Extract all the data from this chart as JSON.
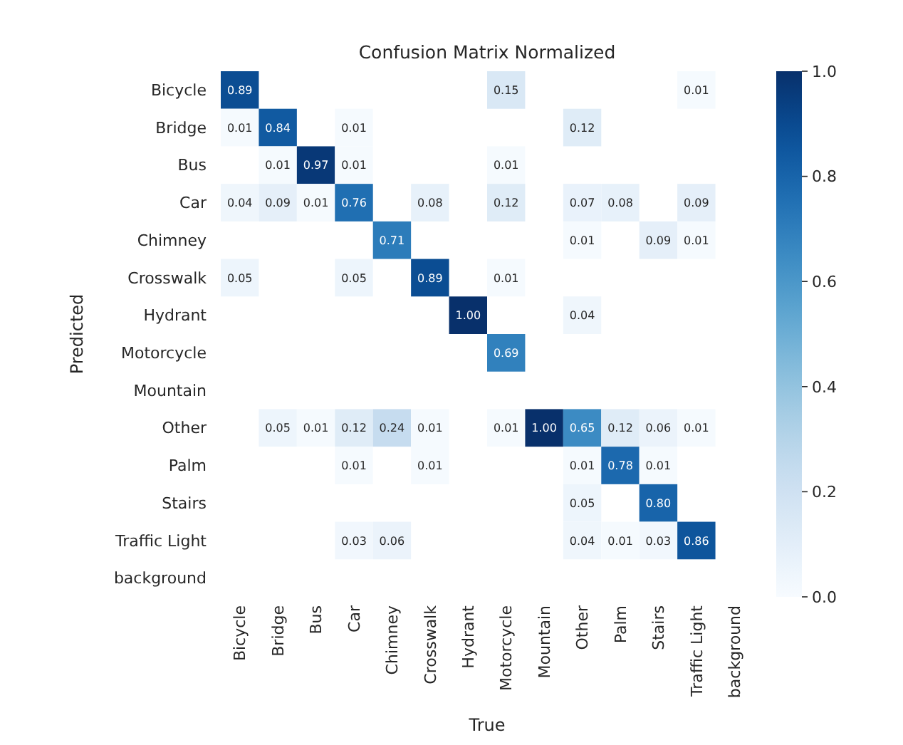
{
  "chart_data": {
    "type": "heatmap",
    "title": "Confusion Matrix Normalized",
    "xlabel": "True",
    "ylabel": "Predicted",
    "categories": [
      "Bicycle",
      "Bridge",
      "Bus",
      "Car",
      "Chimney",
      "Crosswalk",
      "Hydrant",
      "Motorcycle",
      "Mountain",
      "Other",
      "Palm",
      "Stairs",
      "Traffic Light",
      "background"
    ],
    "y_categories": [
      "Bicycle",
      "Bridge",
      "Bus",
      "Car",
      "Chimney",
      "Crosswalk",
      "Hydrant",
      "Motorcycle",
      "Mountain",
      "Other",
      "Palm",
      "Stairs",
      "Traffic Light",
      "background"
    ],
    "cells": [
      [
        0.89,
        null,
        null,
        null,
        null,
        null,
        null,
        0.15,
        null,
        null,
        null,
        null,
        0.01,
        null
      ],
      [
        0.01,
        0.84,
        null,
        0.01,
        null,
        null,
        null,
        null,
        null,
        0.12,
        null,
        null,
        null,
        null
      ],
      [
        null,
        0.01,
        0.97,
        0.01,
        null,
        null,
        null,
        0.01,
        null,
        null,
        null,
        null,
        null,
        null
      ],
      [
        0.04,
        0.09,
        0.01,
        0.76,
        null,
        0.08,
        null,
        0.12,
        null,
        0.07,
        0.08,
        null,
        0.09,
        null
      ],
      [
        null,
        null,
        null,
        null,
        0.71,
        null,
        null,
        null,
        null,
        0.01,
        null,
        0.09,
        0.01,
        null
      ],
      [
        0.05,
        null,
        null,
        0.05,
        null,
        0.89,
        null,
        0.01,
        null,
        null,
        null,
        null,
        null,
        null
      ],
      [
        null,
        null,
        null,
        null,
        null,
        null,
        1.0,
        null,
        null,
        0.04,
        null,
        null,
        null,
        null
      ],
      [
        null,
        null,
        null,
        null,
        null,
        null,
        null,
        0.69,
        null,
        null,
        null,
        null,
        null,
        null
      ],
      [
        null,
        null,
        null,
        null,
        null,
        null,
        null,
        null,
        null,
        null,
        null,
        null,
        null,
        null
      ],
      [
        null,
        0.05,
        0.01,
        0.12,
        0.24,
        0.01,
        null,
        0.01,
        1.0,
        0.65,
        0.12,
        0.06,
        0.01,
        null
      ],
      [
        null,
        null,
        null,
        0.01,
        null,
        0.01,
        null,
        null,
        null,
        0.01,
        0.78,
        0.01,
        null,
        null
      ],
      [
        null,
        null,
        null,
        null,
        null,
        null,
        null,
        null,
        null,
        0.05,
        null,
        0.8,
        null,
        null
      ],
      [
        null,
        null,
        null,
        0.03,
        0.06,
        null,
        null,
        null,
        null,
        0.04,
        0.01,
        0.03,
        0.86,
        null
      ],
      [
        null,
        null,
        null,
        null,
        null,
        null,
        null,
        null,
        null,
        null,
        null,
        null,
        null,
        null
      ]
    ],
    "cell_labels": [
      [
        "0.89",
        null,
        null,
        null,
        null,
        null,
        null,
        "0.15",
        null,
        null,
        null,
        null,
        "0.01",
        null
      ],
      [
        "0.01",
        "0.84",
        null,
        "0.01",
        null,
        null,
        null,
        null,
        null,
        "0.12",
        null,
        null,
        null,
        null
      ],
      [
        null,
        "0.01",
        "0.97",
        "0.01",
        null,
        null,
        null,
        "0.01",
        null,
        null,
        null,
        null,
        null,
        null
      ],
      [
        "0.04",
        "0.09",
        "0.01",
        "0.76",
        null,
        "0.08",
        null,
        "0.12",
        null,
        "0.07",
        "0.08",
        null,
        "0.09",
        null
      ],
      [
        null,
        null,
        null,
        null,
        "0.71",
        null,
        null,
        null,
        null,
        "0.01",
        null,
        "0.09",
        "0.01",
        null
      ],
      [
        "0.05",
        null,
        null,
        "0.05",
        null,
        "0.89",
        null,
        "0.01",
        null,
        null,
        null,
        null,
        null,
        null
      ],
      [
        null,
        null,
        null,
        null,
        null,
        null,
        "1.00",
        null,
        null,
        "0.04",
        null,
        null,
        null,
        null
      ],
      [
        null,
        null,
        null,
        null,
        null,
        null,
        null,
        "0.69",
        null,
        null,
        null,
        null,
        null,
        null
      ],
      [
        null,
        null,
        null,
        null,
        null,
        null,
        null,
        null,
        null,
        null,
        null,
        null,
        null,
        null
      ],
      [
        null,
        "0.05",
        "0.01",
        "0.12",
        "0.24",
        "0.01",
        null,
        "0.01",
        "1.00",
        "0.65",
        "0.12",
        "0.06",
        "0.01",
        null
      ],
      [
        null,
        null,
        null,
        "0.01",
        null,
        "0.01",
        null,
        null,
        null,
        "0.01",
        "0.78",
        "0.01",
        null,
        null
      ],
      [
        null,
        null,
        null,
        null,
        null,
        null,
        null,
        null,
        null,
        "0.05",
        null,
        "0.80",
        null,
        null
      ],
      [
        null,
        null,
        null,
        "0.03",
        "0.06",
        null,
        null,
        null,
        null,
        "0.04",
        "0.01",
        "0.03",
        "0.86",
        null
      ],
      [
        null,
        null,
        null,
        null,
        null,
        null,
        null,
        null,
        null,
        null,
        null,
        null,
        null,
        null
      ]
    ],
    "clim": [
      0,
      1
    ],
    "cticks": [
      {
        "value": 0,
        "label": "0.0"
      },
      0.2,
      0.4,
      0.6,
      0.8,
      {
        "value": 1,
        "label": "1.0"
      }
    ]
  }
}
